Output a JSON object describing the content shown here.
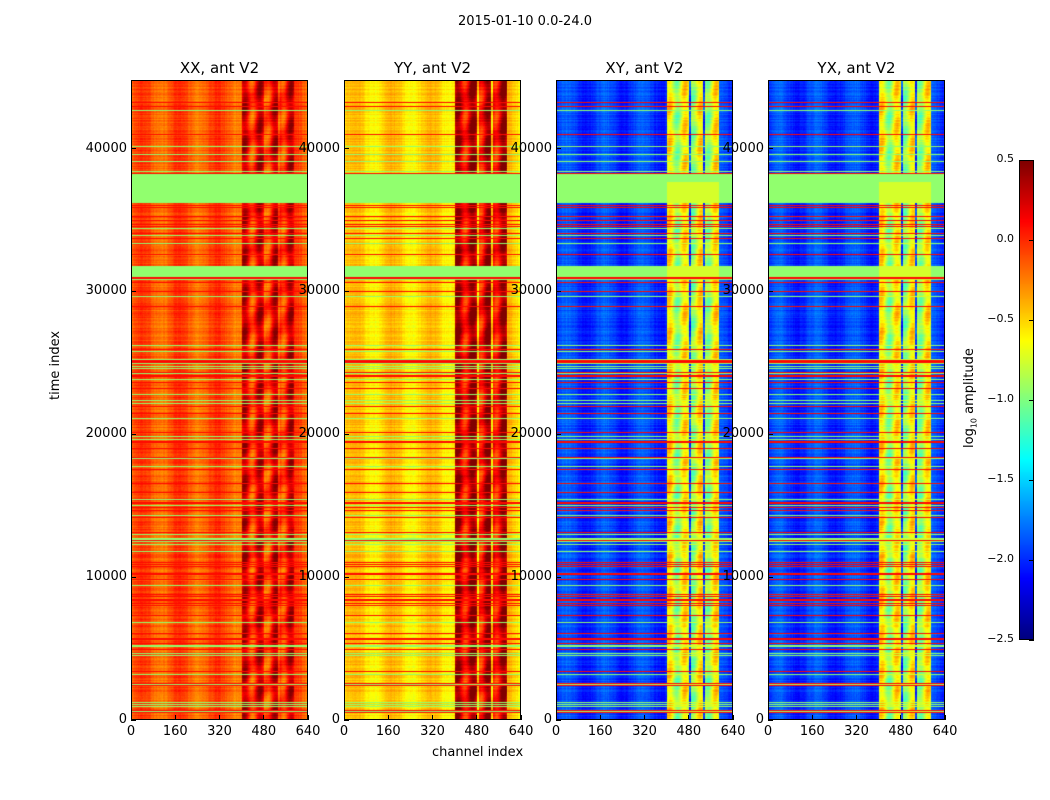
{
  "chart_data": {
    "type": "heatmap",
    "title": "2015-01-10 0.0-24.0",
    "xlabel": "channel index",
    "ylabel": "time index",
    "xlim": [
      0,
      640
    ],
    "ylim": [
      0,
      44800
    ],
    "xticks": [
      "0",
      "160",
      "320",
      "480",
      "640"
    ],
    "xtick_values": [
      0,
      160,
      320,
      480,
      640
    ],
    "yticks": [
      "0",
      "10000",
      "20000",
      "30000",
      "40000"
    ],
    "ytick_values": [
      0,
      10000,
      20000,
      30000,
      40000
    ],
    "colormap": "jet",
    "colorbar": {
      "label_prefix": "log",
      "label_sub": "10",
      "label_suffix": " amplitude",
      "range": [
        -2.5,
        0.5
      ],
      "ticks": [
        "0.5",
        "0.0",
        "−0.5",
        "−1.0",
        "−1.5",
        "−2.0",
        "−2.5"
      ],
      "tick_values": [
        0.5,
        0.0,
        -0.5,
        -1.0,
        -1.5,
        -2.0,
        -2.5
      ]
    },
    "panels": [
      {
        "title": "XX, ant V2",
        "base": -0.12,
        "rfi_band_level": 0.12,
        "flag_level": -0.95
      },
      {
        "title": "YY, ant V2",
        "base": -0.5,
        "rfi_band_level": 0.25,
        "flag_level": -0.95
      },
      {
        "title": "XY, ant V2",
        "base": -1.95,
        "rfi_band_level": -0.75,
        "flag_level": -0.95
      },
      {
        "title": "YX, ant V2",
        "base": -1.95,
        "rfi_band_level": -0.75,
        "flag_level": -0.95
      }
    ],
    "flagged_time_ranges": [
      [
        36200,
        38200
      ],
      [
        31000,
        31600
      ]
    ]
  }
}
